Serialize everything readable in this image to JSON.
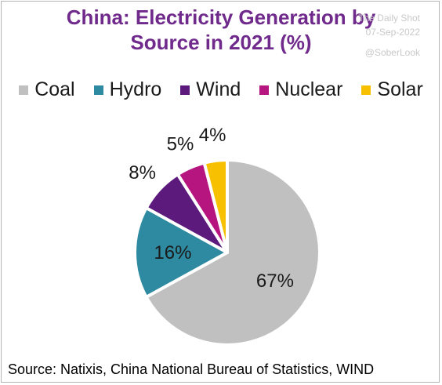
{
  "watermark": {
    "line1": "The Daily Shot",
    "line2": "07-Sep-2022",
    "handle": "@SoberLook"
  },
  "source_text": "Source: Natixis, China National Bureau of Statistics, WIND",
  "title_color": "#6f2a8c",
  "chart_data": {
    "type": "pie",
    "title_lines": [
      "China: Electricity Generation by",
      "Source in 2021 (%)"
    ],
    "legend_position": "top",
    "start_angle_deg": 0,
    "slices": [
      {
        "label": "Coal",
        "value": 67,
        "display": "67%",
        "color": "#c0c0c0"
      },
      {
        "label": "Hydro",
        "value": 16,
        "display": "16%",
        "color": "#2e8aa0"
      },
      {
        "label": "Wind",
        "value": 8,
        "display": "8%",
        "color": "#5b1a7c"
      },
      {
        "label": "Nuclear",
        "value": 5,
        "display": "5%",
        "color": "#b6157f"
      },
      {
        "label": "Solar",
        "value": 4,
        "display": "4%",
        "color": "#f7c000"
      }
    ]
  }
}
